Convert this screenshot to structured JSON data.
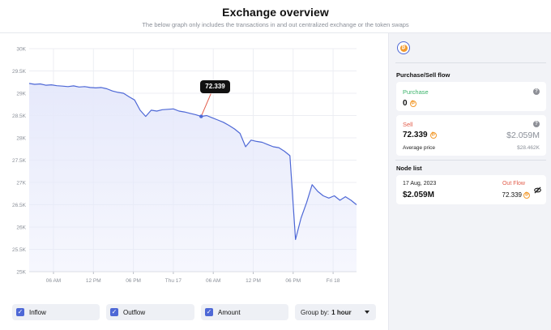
{
  "header": {
    "title": "Exchange overview",
    "subtitle": "The below graph only includes the transactions in and out centralized exchange or the token swaps"
  },
  "chart_data": {
    "type": "area",
    "title": "",
    "xlabel": "",
    "ylabel": "",
    "ylim": [
      25000,
      30000
    ],
    "yticks": [
      "25K",
      "25.5K",
      "26K",
      "26.5K",
      "27K",
      "27.5K",
      "28K",
      "28.5K",
      "29K",
      "29.5K",
      "30K"
    ],
    "xticks": [
      "06 AM",
      "12 PM",
      "06 PM",
      "Thu 17",
      "06 AM",
      "12 PM",
      "06 PM",
      "Fri 18"
    ],
    "grid": true,
    "colors": {
      "line": "#4e68d6",
      "fill": "#e6e9fb",
      "marker": "#4e68d6"
    },
    "series": [
      {
        "values": [
          29220,
          29200,
          29210,
          29180,
          29190,
          29170,
          29160,
          29150,
          29165,
          29140,
          29150,
          29130,
          29120,
          29130,
          29100,
          29050,
          29020,
          29000,
          28920,
          28850,
          28620,
          28480,
          28620,
          28600,
          28630,
          28640,
          28650,
          28600,
          28580,
          28550,
          28520,
          28480,
          28500,
          28450,
          28400,
          28350,
          28280,
          28200,
          28100,
          27800,
          27950,
          27920,
          27900,
          27850,
          27800,
          27780,
          27700,
          27600,
          25720,
          26200,
          26550,
          26950,
          26800,
          26700,
          26650,
          26700,
          26600,
          26680,
          26600,
          26500
        ]
      }
    ],
    "highlight": {
      "index": 31,
      "label": "72.339"
    }
  },
  "controls": {
    "inflow": "Inflow",
    "outflow": "Outflow",
    "amount": "Amount",
    "group_by_label": "Group by:",
    "group_by_value": "1 hour"
  },
  "sidebar": {
    "flow_title": "Purchase/Sell flow",
    "purchase_label": "Purchase",
    "purchase_value": "0",
    "sell_label": "Sell",
    "sell_value": "72.339",
    "sell_usd": "$2.059M",
    "avg_price_label": "Average price",
    "avg_price_value": "$28.462K",
    "node_title": "Node list",
    "node": {
      "date": "17 Aug, 2023",
      "flow_type": "Out Flow",
      "amount_usd": "$2.059M",
      "amount_token": "72.339"
    }
  }
}
